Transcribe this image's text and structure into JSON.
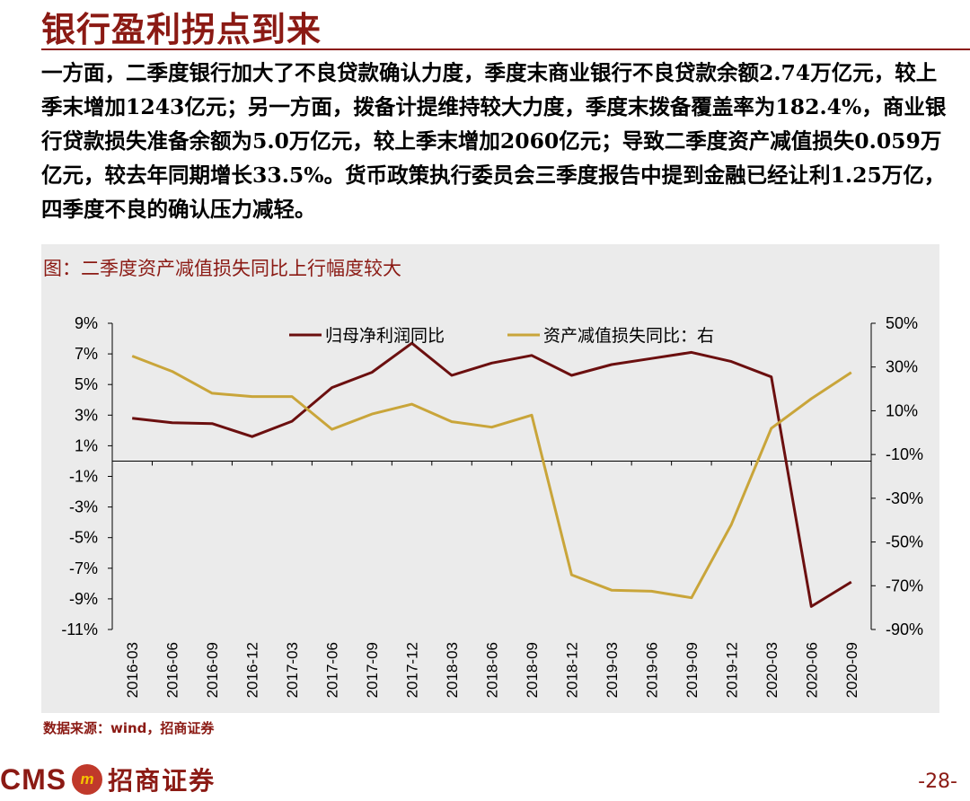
{
  "title": "银行盈利拐点到来",
  "paragraph": "一方面，二季度银行加大了不良贷款确认力度，季度末商业银行不良贷款余额2.74万亿元，较上季末增加1243亿元；另一方面，拨备计提维持较大力度，季度末拨备覆盖率为182.4%，商业银行贷款损失准备余额为5.0万亿元，较上季末增加2060亿元；导致二季度资产减值损失0.059万亿元，较去年同期增长33.5%。货币政策执行委员会三季度报告中提到金融已经让利1.25万亿，四季度不良的确认压力减轻。",
  "source": "数据来源：wind，招商证券",
  "logo": {
    "brand": "CMS",
    "mark": "m",
    "name": "招商证券"
  },
  "page_number": "-28-",
  "colors": {
    "accent": "#8b1a14",
    "series1": "#6b0f0f",
    "series2": "#c9a53a"
  },
  "chart_data": {
    "type": "line",
    "title": "图：二季度资产减值损失同比上行幅度较大",
    "categories": [
      "2016-03",
      "2016-06",
      "2016-09",
      "2016-12",
      "2017-03",
      "2017-06",
      "2017-09",
      "2017-12",
      "2018-03",
      "2018-06",
      "2018-09",
      "2018-12",
      "2019-03",
      "2019-06",
      "2019-09",
      "2019-12",
      "2020-03",
      "2020-06",
      "2020-09"
    ],
    "y_left": {
      "ylim": [
        -11,
        9
      ],
      "ticks": [
        "9%",
        "7%",
        "5%",
        "3%",
        "1%",
        "-1%",
        "-3%",
        "-5%",
        "-7%",
        "-9%",
        "-11%"
      ]
    },
    "y_right": {
      "ylim": [
        -90,
        50
      ],
      "ticks": [
        "50%",
        "30%",
        "10%",
        "-10%",
        "-30%",
        "-50%",
        "-70%",
        "-90%"
      ]
    },
    "legend_position": "top",
    "series": [
      {
        "name": "归母净利润同比",
        "axis": "left",
        "color": "#6b0f0f",
        "values": [
          2.8,
          2.5,
          2.45,
          1.6,
          2.6,
          4.8,
          5.8,
          7.7,
          5.6,
          6.4,
          6.9,
          5.6,
          6.3,
          6.7,
          7.1,
          6.5,
          5.5,
          -9.5,
          -7.9
        ]
      },
      {
        "name": "资产减值损失同比：右",
        "axis": "right",
        "color": "#c9a53a",
        "values": [
          35,
          28,
          18,
          16.5,
          16.5,
          1.5,
          8.5,
          13,
          5,
          2.5,
          8,
          -65,
          -72,
          -72.5,
          -75.5,
          -42,
          2,
          15.5,
          27.5
        ]
      }
    ]
  }
}
